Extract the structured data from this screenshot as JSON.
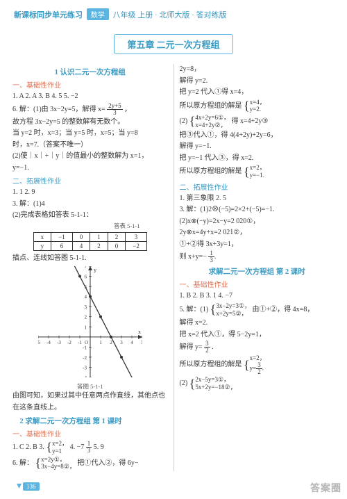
{
  "header": {
    "series": "新课标同步单元练习",
    "subject": "数学",
    "grade": "八年级 上册 · 北师大版 · 答对练版"
  },
  "chapter": "第五章  二元一次方程组",
  "left": {
    "s1_title": "1  认识二元一次方程组",
    "basic_label": "一、基础性作业",
    "l1": "1. A   2. A   3. B   4. 5   5. −2",
    "l2a": "6. 解：(1)由 3x−2y=5，解得 x=",
    "l2_frac_n": "2y+5",
    "l2_frac_d": "3",
    "l2b": "，",
    "l3": "故方程 3x−2y=5 的整数解有无数个。",
    "l4": "当 y=2 时，x=3；当 y=5 时，x=5；当 y=8",
    "l5": "时，x=7.（答案不唯一）",
    "l6": "(2)使｜x｜+｜y｜的值最小的整数解为 x=1，",
    "l7": "y=−1.",
    "ext_label": "二、拓展性作业",
    "e1": "1. 1   2. 9",
    "e2": "3. 解：(1)4",
    "e3": "(2)完成表格如答表 5-1-1：",
    "tbl_caption": "答表 5-1-1",
    "tbl": {
      "r1": [
        "x",
        "−1",
        "0",
        "1",
        "2",
        "3"
      ],
      "r2": [
        "y",
        "6",
        "4",
        "2",
        "0",
        "−2"
      ]
    },
    "e4": "描点、连线如答图 5-1-1.",
    "graph": {
      "width": 150,
      "height": 160,
      "xmin": -5,
      "xmax": 5,
      "ymin": -4,
      "ymax": 7,
      "line_color": "#333",
      "point_color": "#333",
      "points": [
        [
          -1,
          6
        ],
        [
          0,
          4
        ],
        [
          1,
          2
        ],
        [
          2,
          0
        ],
        [
          3,
          -2
        ]
      ]
    },
    "graph_caption": "答图 5-1-1",
    "e5": "由图可知，如果过其中任意两点作直线，其他点也",
    "e6": "在这条直线上。",
    "s2_title": "2  求解二元一次方程组  第 1 课时",
    "basic2_label": "一、基础性作业",
    "b2_l1a": "1. C   2. B   3.",
    "b2_eq1a": "x=2，",
    "b2_eq1b": "y=1",
    "b2_l1b": "   4. −7   ",
    "b2_l1c": "   5. 9",
    "b2_frac_n": "1",
    "b2_frac_d": "3",
    "b2_l2a": "6. 解：",
    "b2_eq2a": "x=2y①，",
    "b2_eq2b": "3x−4y=8②，",
    "b2_l2b": "把①代入②，得 6y−"
  },
  "right": {
    "r1": "2y=8，",
    "r2": "解得 y=2.",
    "r3": "把 y=2 代入①得 x=4，",
    "r4a": "所以原方程组的解是",
    "r4_eq_a": "x=4，",
    "r4_eq_b": "y=2.",
    "r5a": "(2)",
    "r5_eq_a": "4x+2y=6①，",
    "r5_eq_b": "x=4+2y②，",
    "r5b": "得 x=4+2y③",
    "r6": "把③代入①，得 4(4+2y)+2y=6，",
    "r7": "解得 y=−1.",
    "r8": "把 y=−1 代入③，得 x=2.",
    "r9a": "所以原方程组的解是",
    "r9_eq_a": "x=2，",
    "r9_eq_b": "y=−1.",
    "ext_label": "二、拓展性作业",
    "e1": "1. 第三象限   2. 5",
    "e2": "3. 解：(1)2⊗(−5)=2×2+(−5)=−1.",
    "e3": "(2)x⊗(−y)=2x−y=2 020①，",
    "e4": "2y⊗x=4y+x=2 021②，",
    "e5": "①+②得 3x+3y=1，",
    "e6a": "则 x+y=",
    "e6_frac_n": "1",
    "e6_frac_d": "3",
    "e6b": "−   .",
    "s3_title": "求解二元一次方程组  第 2 课时",
    "basic_label": "一、基础性作业",
    "b1": "1. B   2. B   3. 1   4. −7",
    "b2a": "5. 解：(1)",
    "b2_eq_a": "3x−2y=3①，",
    "b2_eq_b": "x+2y=5②，",
    "b2b": "由①+②，得 4x=8，",
    "b3": "解得 x=2.",
    "b4": "把 x=2 代入①，得 5−2y=1，",
    "b5a": "解得 y=",
    "b5_frac_n": "3",
    "b5_frac_d": "2",
    "b5b": ".",
    "b6a": "所以原方程组的解是",
    "b6_eq_a": "x=2，",
    "b6_eq_b": "y=  .",
    "b6_inner_n": "3",
    "b6_inner_d": "2",
    "b7a": "(2)",
    "b7_eq_a": "2x−5y=3①，",
    "b7_eq_b": "5x+2y=−18②，",
    "page_num": "136"
  }
}
